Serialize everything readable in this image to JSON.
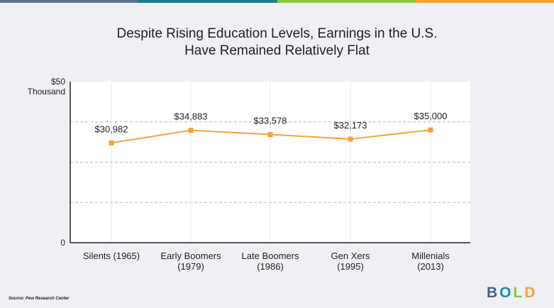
{
  "top_bar_colors": [
    "#5a6f93",
    "#1c7a8e",
    "#8dc640",
    "#f5a23a"
  ],
  "title_line1": "Despite Rising Education Levels, Earnings in the U.S.",
  "title_line2": "Have Remained Relatively Flat",
  "source": "Source: Pew Research Center",
  "logo": {
    "letters": [
      "B",
      "O",
      "L",
      "D"
    ],
    "colors": [
      "#4a5f8a",
      "#1f8fa3",
      "#8dc640",
      "#f5a23a"
    ]
  },
  "chart_data": {
    "type": "line",
    "categories": [
      [
        "Silents (1965)"
      ],
      [
        "Early Boomers",
        "(1979)"
      ],
      [
        "Late Boomers",
        "(1986)"
      ],
      [
        "Gen Xers",
        "(1995)"
      ],
      [
        "Millenials",
        "(2013)"
      ]
    ],
    "values": [
      30982,
      34883,
      33578,
      32173,
      35000
    ],
    "data_labels": [
      "$30,982",
      "$34,883",
      "$33,578",
      "$32,173",
      "$35,000"
    ],
    "y_ticks": [
      {
        "value": 50000,
        "label": [
          "$50",
          "Thousand"
        ]
      },
      {
        "value": 0,
        "label": [
          "0"
        ]
      }
    ],
    "ylim": [
      0,
      50000
    ],
    "gridlines": [
      12500,
      25000,
      37500
    ],
    "color": "#f5a23a",
    "grid": true,
    "legend": "none"
  }
}
